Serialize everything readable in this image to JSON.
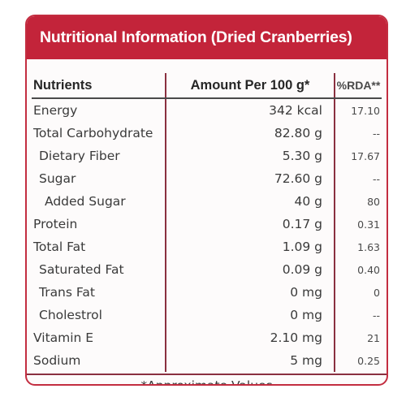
{
  "title": "Nutritional Information (Dried Cranberries)",
  "headers": {
    "nutrient": "Nutrients",
    "amount": "Amount Per 100 g*",
    "rda": "%RDA**"
  },
  "rows": [
    {
      "name": "Energy",
      "amount": "342 kcal",
      "rda": "17.10"
    },
    {
      "name": "Total Carbohydrate",
      "amount": "82.80 g",
      "rda": "--"
    },
    {
      "name": "Dietary Fiber",
      "amount": "5.30 g",
      "rda": "17.67"
    },
    {
      "name": "Sugar",
      "amount": "72.60 g",
      "rda": "--"
    },
    {
      "name": "Added Sugar",
      "amount": "40 g",
      "rda": "80"
    },
    {
      "name": "Protein",
      "amount": "0.17 g",
      "rda": "0.31"
    },
    {
      "name": "Total Fat",
      "amount": "1.09 g",
      "rda": "1.63"
    },
    {
      "name": "Saturated Fat",
      "amount": "0.09 g",
      "rda": "0.40"
    },
    {
      "name": "Trans Fat",
      "amount": "0 mg",
      "rda": "0"
    },
    {
      "name": "Cholestrol",
      "amount": "0 mg",
      "rda": "--"
    },
    {
      "name": "Vitamin E",
      "amount": "2.10 mg",
      "rda": "21"
    },
    {
      "name": "Sodium",
      "amount": "5 mg",
      "rda": "0.25"
    }
  ],
  "footer": "*Approximate Values",
  "colors": {
    "header_bg": "#c3243a",
    "border": "#c32d40"
  }
}
